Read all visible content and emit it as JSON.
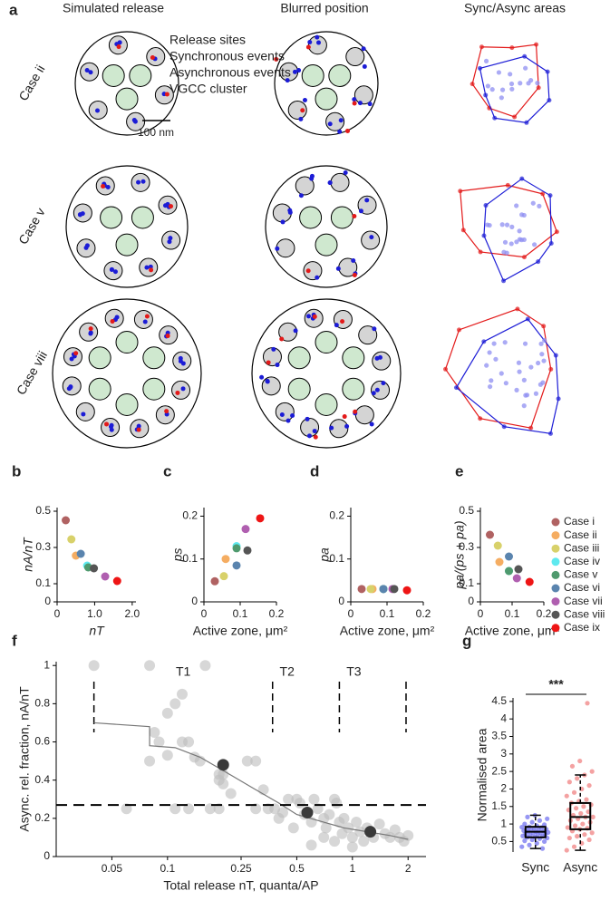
{
  "panel_a": {
    "panel": "a",
    "column_titles": [
      "Simulated release",
      "Blurred position",
      "Sync/Async areas"
    ],
    "row_labels": [
      "Case ii",
      "Case v",
      "Case viii"
    ],
    "legend": [
      "Release sites",
      "Synchronous events",
      "Asynchronous events",
      "VGCC cluster"
    ],
    "legend_colors": [
      "#9a9a9a",
      "#1c1cd6",
      "#e31a1a",
      "#1f9a4a"
    ],
    "scale_bar": "100 nm"
  },
  "chart_data": [
    {
      "type": "scatter",
      "panel": "b",
      "xlabel": "nT",
      "ylabel": "nA/nT",
      "x": [
        0.23,
        0.5,
        0.38,
        0.8,
        0.83,
        0.63,
        1.28,
        0.98,
        1.6
      ],
      "values": [
        0.45,
        0.255,
        0.345,
        0.2,
        0.19,
        0.265,
        0.14,
        0.185,
        0.115
      ],
      "xlim": [
        0,
        2.1
      ],
      "ylim": [
        0,
        0.52
      ],
      "xticks": [
        0,
        {
          "value": 1,
          "label": "1.0"
        },
        {
          "value": 2,
          "label": "2.0"
        }
      ],
      "yticks": [
        0,
        0.1,
        0.3,
        0.5
      ]
    },
    {
      "type": "scatter",
      "panel": "c",
      "xlabel": "Active zone, μm²",
      "ylabel": "ps",
      "x": [
        0.03,
        0.06,
        0.055,
        0.09,
        0.09,
        0.09,
        0.115,
        0.12,
        0.155
      ],
      "values": [
        0.048,
        0.1,
        0.06,
        0.13,
        0.125,
        0.085,
        0.17,
        0.12,
        0.195
      ],
      "xlim": [
        0,
        0.2
      ],
      "ylim": [
        0,
        0.22
      ],
      "xticks": [
        0,
        0.1,
        0.2
      ],
      "yticks": [
        0,
        0.1,
        0.2
      ]
    },
    {
      "type": "scatter",
      "panel": "d",
      "xlabel": "Active zone, μm²",
      "ylabel": "pa",
      "x": [
        0.03,
        0.06,
        0.055,
        0.09,
        0.09,
        0.09,
        0.115,
        0.12,
        0.155
      ],
      "values": [
        0.03,
        0.03,
        0.03,
        0.03,
        0.03,
        0.03,
        0.03,
        0.03,
        0.027
      ],
      "xlim": [
        0,
        0.2
      ],
      "ylim": [
        0,
        0.22
      ],
      "xticks": [
        0,
        0.1,
        0.2
      ],
      "yticks": [
        0,
        0.1,
        0.2
      ]
    },
    {
      "type": "scatter",
      "panel": "e",
      "xlabel": "Active zone, μm²",
      "ylabel": "pa/(ps + pa)",
      "x": [
        0.03,
        0.06,
        0.055,
        0.09,
        0.09,
        0.09,
        0.115,
        0.12,
        0.155
      ],
      "values": [
        0.37,
        0.22,
        0.31,
        0.17,
        0.17,
        0.25,
        0.13,
        0.18,
        0.11
      ],
      "xlim": [
        0,
        0.2
      ],
      "ylim": [
        0,
        0.52
      ],
      "xticks": [
        0,
        0.1,
        0.2
      ],
      "yticks": [
        0,
        0.1,
        0.3,
        0.5
      ],
      "legend": {
        "names": [
          "Case i",
          "Case ii",
          "Case iii",
          "Case iv",
          "Case v",
          "Case vi",
          "Case vii",
          "Case viii",
          "Case ix"
        ],
        "colors": [
          "#b06262",
          "#f5ad62",
          "#d8d16a",
          "#5ee9ef",
          "#4f9a6e",
          "#5a84ae",
          "#b05fb0",
          "#555555",
          "#ee1515"
        ]
      }
    },
    {
      "type": "scatter",
      "panel": "f",
      "xlabel": "Total release nT, quanta/AP",
      "ylabel": "Async. rel. fraction, nA/nT",
      "xlog": true,
      "xlim": [
        0.025,
        2.5
      ],
      "ylim": [
        0,
        1.02
      ],
      "xticks": [
        0.05,
        0.1,
        0.25,
        0.5,
        1,
        2
      ],
      "yticks": [
        0,
        0.2,
        0.4,
        0.6,
        0.8,
        1
      ],
      "points": {
        "color": "#bdbdbd",
        "x": [
          0.04,
          0.08,
          0.06,
          0.08,
          0.085,
          0.09,
          0.1,
          0.11,
          0.12,
          0.1,
          0.12,
          0.13,
          0.14,
          0.15,
          0.16,
          0.13,
          0.11,
          0.19,
          0.17,
          0.2,
          0.19,
          0.2,
          0.19,
          0.22,
          0.27,
          0.3,
          0.3,
          0.33,
          0.35,
          0.38,
          0.4,
          0.42,
          0.45,
          0.48,
          0.5,
          0.52,
          0.55,
          0.6,
          0.62,
          0.65,
          0.7,
          0.72,
          0.75,
          0.8,
          0.82,
          0.85,
          0.88,
          0.9,
          0.95,
          1.0,
          1.05,
          1.1,
          1.15,
          1.2,
          1.3,
          1.4,
          1.5,
          1.6,
          1.7,
          1.8,
          1.9,
          2.0,
          0.7,
          0.8,
          0.6,
          1.0
        ],
        "values": [
          1.0,
          1.0,
          0.25,
          0.5,
          0.65,
          0.6,
          0.75,
          0.8,
          0.85,
          0.53,
          0.6,
          0.6,
          0.52,
          0.5,
          1.0,
          0.25,
          0.25,
          0.25,
          0.25,
          0.38,
          0.4,
          0.43,
          0.43,
          0.33,
          0.5,
          0.5,
          0.25,
          0.35,
          0.25,
          0.25,
          0.2,
          0.23,
          0.3,
          0.15,
          0.3,
          0.28,
          0.22,
          0.18,
          0.3,
          0.25,
          0.2,
          0.15,
          0.22,
          0.3,
          0.28,
          0.18,
          0.12,
          0.2,
          0.15,
          0.1,
          0.18,
          0.13,
          0.08,
          0.15,
          0.1,
          0.17,
          0.12,
          0.1,
          0.14,
          0.1,
          0.08,
          0.11,
          0.1,
          0.08,
          0.06,
          0.05
        ]
      },
      "trend": {
        "color": "#777777",
        "x": [
          0.04,
          0.08,
          0.08,
          0.11,
          0.15,
          0.2,
          0.3,
          0.4,
          0.5,
          0.7,
          0.9,
          1.2,
          1.6,
          2.0
        ],
        "values": [
          0.7,
          0.68,
          0.58,
          0.57,
          0.52,
          0.45,
          0.35,
          0.28,
          0.22,
          0.18,
          0.15,
          0.13,
          0.11,
          0.09
        ]
      },
      "means": {
        "color": "#3a3a3a",
        "x": [
          0.2,
          0.57,
          1.25
        ],
        "values": [
          0.48,
          0.23,
          0.13
        ],
        "errors": [
          0.03,
          0.02,
          0.02
        ]
      },
      "threshold": 0.27,
      "tiers": {
        "names": [
          "T1",
          "T2",
          "T3"
        ],
        "bounds": [
          0.04,
          0.37,
          0.85,
          1.95
        ]
      }
    },
    {
      "type": "box",
      "panel": "g",
      "ylabel": "Normalised area",
      "significance": "***",
      "categories": [
        "Sync",
        "Async"
      ],
      "colors": [
        "#6b6bf0",
        "#f07a7a"
      ],
      "ylim": [
        0.2,
        4.6
      ],
      "yticks": [
        0.5,
        1,
        1.5,
        2,
        2.5,
        3,
        3.5,
        4,
        4.5
      ],
      "boxes": [
        {
          "whislo": 0.3,
          "q1": 0.62,
          "med": 0.78,
          "q3": 0.92,
          "whishi": 1.25
        },
        {
          "whislo": 0.25,
          "q1": 0.85,
          "med": 1.2,
          "q3": 1.6,
          "whishi": 2.4
        }
      ],
      "points": [
        [
          0.35,
          0.4,
          0.45,
          0.5,
          0.52,
          0.55,
          0.58,
          0.6,
          0.62,
          0.63,
          0.65,
          0.66,
          0.68,
          0.7,
          0.71,
          0.72,
          0.74,
          0.75,
          0.76,
          0.78,
          0.78,
          0.8,
          0.81,
          0.82,
          0.84,
          0.85,
          0.86,
          0.88,
          0.9,
          0.91,
          0.92,
          0.95,
          0.98,
          1.0,
          1.05,
          1.1,
          1.15,
          1.2,
          1.25,
          0.3
        ],
        [
          0.25,
          0.35,
          0.45,
          0.55,
          0.6,
          0.65,
          0.7,
          0.75,
          0.8,
          0.85,
          0.88,
          0.9,
          0.95,
          1.0,
          1.05,
          1.1,
          1.15,
          1.2,
          1.2,
          1.25,
          1.3,
          1.35,
          1.4,
          1.45,
          1.5,
          1.55,
          1.6,
          1.65,
          1.7,
          1.8,
          1.9,
          2.0,
          2.1,
          2.2,
          2.3,
          2.4,
          2.5,
          2.65,
          2.8,
          4.45
        ]
      ]
    }
  ]
}
